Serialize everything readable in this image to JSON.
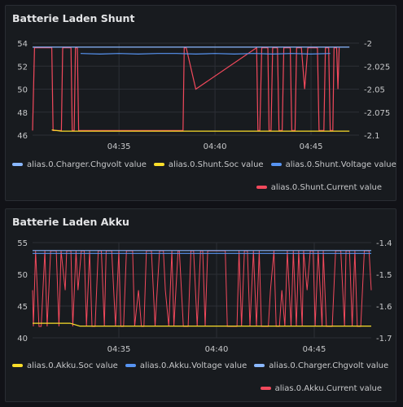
{
  "panels": [
    {
      "title": "Batterie Laden Shunt"
    },
    {
      "title": "Batterie Laden Akku"
    }
  ],
  "chart_data": [
    {
      "type": "line",
      "title": "Batterie Laden Shunt",
      "x_ticks": [
        "04:35",
        "04:40",
        "04:45"
      ],
      "x_domain": [
        "04:30:30",
        "04:47:30"
      ],
      "y_left": {
        "ticks": [
          46,
          48,
          50,
          52,
          54
        ],
        "range": [
          46,
          54
        ]
      },
      "y_right": {
        "ticks": [
          -2,
          -2.025,
          -2.05,
          -2.075,
          -2.1
        ],
        "range": [
          -2.1,
          -2
        ]
      },
      "series": [
        {
          "name": "alias.0.Charger.Chgvolt value",
          "color": "#8ab8ff",
          "axis": "left",
          "points": [
            [
              "04:30:30",
              53.65
            ],
            [
              "04:47:00",
              53.65
            ]
          ]
        },
        {
          "name": "alias.0.Shunt.Soc value",
          "color": "#fade2a",
          "axis": "left",
          "points": [
            [
              "04:31:30",
              46.45
            ],
            [
              "04:32:00",
              46.35
            ],
            [
              "04:47:00",
              46.35
            ]
          ]
        },
        {
          "name": "alias.0.Shunt.Voltage value",
          "color": "#5794f2",
          "axis": "left",
          "points": [
            [
              "04:33:00",
              53.1
            ],
            [
              "04:34:00",
              53.05
            ],
            [
              "04:35:00",
              53.1
            ],
            [
              "04:36:00",
              53.05
            ],
            [
              "04:37:00",
              53.1
            ],
            [
              "04:38:00",
              53.1
            ],
            [
              "04:39:00",
              53.05
            ],
            [
              "04:40:00",
              53.1
            ],
            [
              "04:41:00",
              53.05
            ],
            [
              "04:42:00",
              53.1
            ],
            [
              "04:43:00",
              53.05
            ],
            [
              "04:44:00",
              53.1
            ],
            [
              "04:45:00",
              53.05
            ],
            [
              "04:46:00",
              53.1
            ]
          ]
        },
        {
          "name": "alias.0.Shunt.Current value",
          "color": "#f2495c",
          "axis": "left",
          "points": [
            [
              "04:30:30",
              46.4
            ],
            [
              "04:30:36",
              53.6
            ],
            [
              "04:31:30",
              53.6
            ],
            [
              "04:31:34",
              46.4
            ],
            [
              "04:32:00",
              46.4
            ],
            [
              "04:32:04",
              53.6
            ],
            [
              "04:32:30",
              53.6
            ],
            [
              "04:32:34",
              46.4
            ],
            [
              "04:32:40",
              46.4
            ],
            [
              "04:32:44",
              53.6
            ],
            [
              "04:32:50",
              53.6
            ],
            [
              "04:32:54",
              46.4
            ],
            [
              "04:38:20",
              46.4
            ],
            [
              "04:38:24",
              53.6
            ],
            [
              "04:38:30",
              53.6
            ],
            [
              "04:39:00",
              50.0
            ],
            [
              "04:42:10",
              53.6
            ],
            [
              "04:42:14",
              46.4
            ],
            [
              "04:42:20",
              46.4
            ],
            [
              "04:42:26",
              53.6
            ],
            [
              "04:42:45",
              53.6
            ],
            [
              "04:42:49",
              46.4
            ],
            [
              "04:42:55",
              46.4
            ],
            [
              "04:43:00",
              53.6
            ],
            [
              "04:43:15",
              53.6
            ],
            [
              "04:43:20",
              46.4
            ],
            [
              "04:43:30",
              46.4
            ],
            [
              "04:43:35",
              53.6
            ],
            [
              "04:43:55",
              53.6
            ],
            [
              "04:44:00",
              46.4
            ],
            [
              "04:44:10",
              46.4
            ],
            [
              "04:44:15",
              53.6
            ],
            [
              "04:44:30",
              53.6
            ],
            [
              "04:44:40",
              50.0
            ],
            [
              "04:44:50",
              53.6
            ],
            [
              "04:45:20",
              53.6
            ],
            [
              "04:45:25",
              46.4
            ],
            [
              "04:45:40",
              46.4
            ],
            [
              "04:45:45",
              53.6
            ],
            [
              "04:45:55",
              53.6
            ],
            [
              "04:46:00",
              46.4
            ],
            [
              "04:46:08",
              46.4
            ],
            [
              "04:46:12",
              53.6
            ],
            [
              "04:46:20",
              53.6
            ],
            [
              "04:46:24",
              50.0
            ],
            [
              "04:46:28",
              53.6
            ]
          ]
        }
      ],
      "legend": "bottom",
      "grid": true
    },
    {
      "type": "line",
      "title": "Batterie Laden Akku",
      "x_ticks": [
        "04:35",
        "04:40",
        "04:45"
      ],
      "x_domain": [
        "04:30:35",
        "04:47:55"
      ],
      "y_left": {
        "ticks": [
          40,
          45,
          50,
          55
        ],
        "range": [
          40,
          55
        ]
      },
      "y_right": {
        "ticks": [
          -1.4,
          -1.5,
          -1.6,
          -1.7
        ],
        "range": [
          -1.7,
          -1.4
        ]
      },
      "series": [
        {
          "name": "alias.0.Akku.Soc value",
          "color": "#fade2a",
          "axis": "left",
          "points": [
            [
              "04:30:35",
              42.3
            ],
            [
              "04:32:30",
              42.3
            ],
            [
              "04:33:00",
              41.85
            ],
            [
              "04:47:55",
              41.85
            ]
          ]
        },
        {
          "name": "alias.0.Akku.Voltage value",
          "color": "#5794f2",
          "axis": "left",
          "points": [
            [
              "04:30:35",
              53.3
            ],
            [
              "04:47:55",
              53.3
            ]
          ]
        },
        {
          "name": "alias.0.Charger.Chgvolt value",
          "color": "#8ab8ff",
          "axis": "left",
          "points": [
            [
              "04:30:35",
              53.75
            ],
            [
              "04:47:55",
              53.75
            ]
          ]
        },
        {
          "name": "alias.0.Akku.Current value",
          "color": "#f2495c",
          "axis": "left",
          "oscillating": {
            "from": "04:30:35",
            "to": "04:47:55",
            "low": 41.8,
            "high": 53.7,
            "mid": 47.5,
            "segments": 120
          }
        }
      ],
      "legend": "bottom",
      "grid": true
    }
  ]
}
